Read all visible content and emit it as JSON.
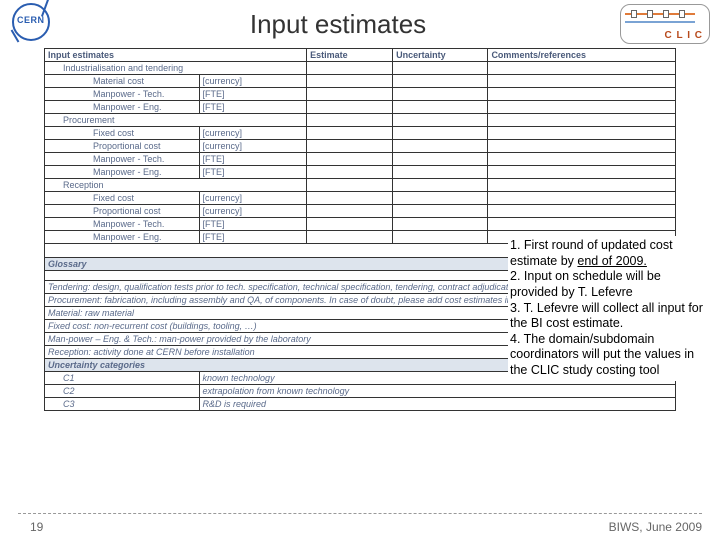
{
  "header": {
    "title": "Input estimates",
    "cern": "CERN",
    "clic": "C L I C"
  },
  "table": {
    "headers": {
      "main": "Input estimates",
      "est": "Estimate",
      "unc": "Uncertainty",
      "com": "Comments/references"
    },
    "sections": [
      {
        "title": "Industrialisation and tendering",
        "rows": [
          {
            "label": "Material cost",
            "unit": "[currency]"
          },
          {
            "label": "Manpower - Tech.",
            "unit": "[FTE]"
          },
          {
            "label": "Manpower - Eng.",
            "unit": "[FTE]"
          }
        ]
      },
      {
        "title": "Procurement",
        "rows": [
          {
            "label": "Fixed cost",
            "unit": "[currency]"
          },
          {
            "label": "Proportional cost",
            "unit": "[currency]"
          },
          {
            "label": "Manpower - Tech.",
            "unit": "[FTE]"
          },
          {
            "label": "Manpower - Eng.",
            "unit": "[FTE]"
          }
        ]
      },
      {
        "title": "Reception",
        "rows": [
          {
            "label": "Fixed cost",
            "unit": "[currency]"
          },
          {
            "label": "Proportional cost",
            "unit": "[currency]"
          },
          {
            "label": "Manpower - Tech.",
            "unit": "[FTE]"
          },
          {
            "label": "Manpower - Eng.",
            "unit": "[FTE]"
          }
        ]
      }
    ],
    "spacer": " ",
    "glossary_head": "Glossary",
    "glossary": [
      "Tendering: design, qualification tests prior to tech. specification, technical specification, tendering, contract adjudication",
      "Procurement: fabrication, including assembly and QA, of components. In case of doubt, please add cost estimates into the \"procurement\" category.",
      "Material: raw material",
      "Fixed cost: non-recurrent cost (buildings, tooling, …)",
      "Man-power – Eng. & Tech.: man-power provided by the laboratory",
      "Reception: activity done at CERN before installation"
    ],
    "unc_head": "Uncertainty categories",
    "unc_rows": [
      {
        "code": "C1",
        "desc": "known technology"
      },
      {
        "code": "C2",
        "desc": "extrapolation from known technology"
      },
      {
        "code": "C3",
        "desc": "R&D is required"
      }
    ]
  },
  "notes": {
    "l1a": "1. First round of updated cost estimate by ",
    "l1u": "end of 2009.",
    "l2": "2. Input on schedule will be provided by T. Lefevre",
    "l3": "3. T. Lefevre will collect all input for the BI cost estimate.",
    "l4": "4. The domain/subdomain coordinators will put the values in the CLIC study costing tool"
  },
  "footer": {
    "page": "19",
    "right": "BIWS, June 2009"
  }
}
